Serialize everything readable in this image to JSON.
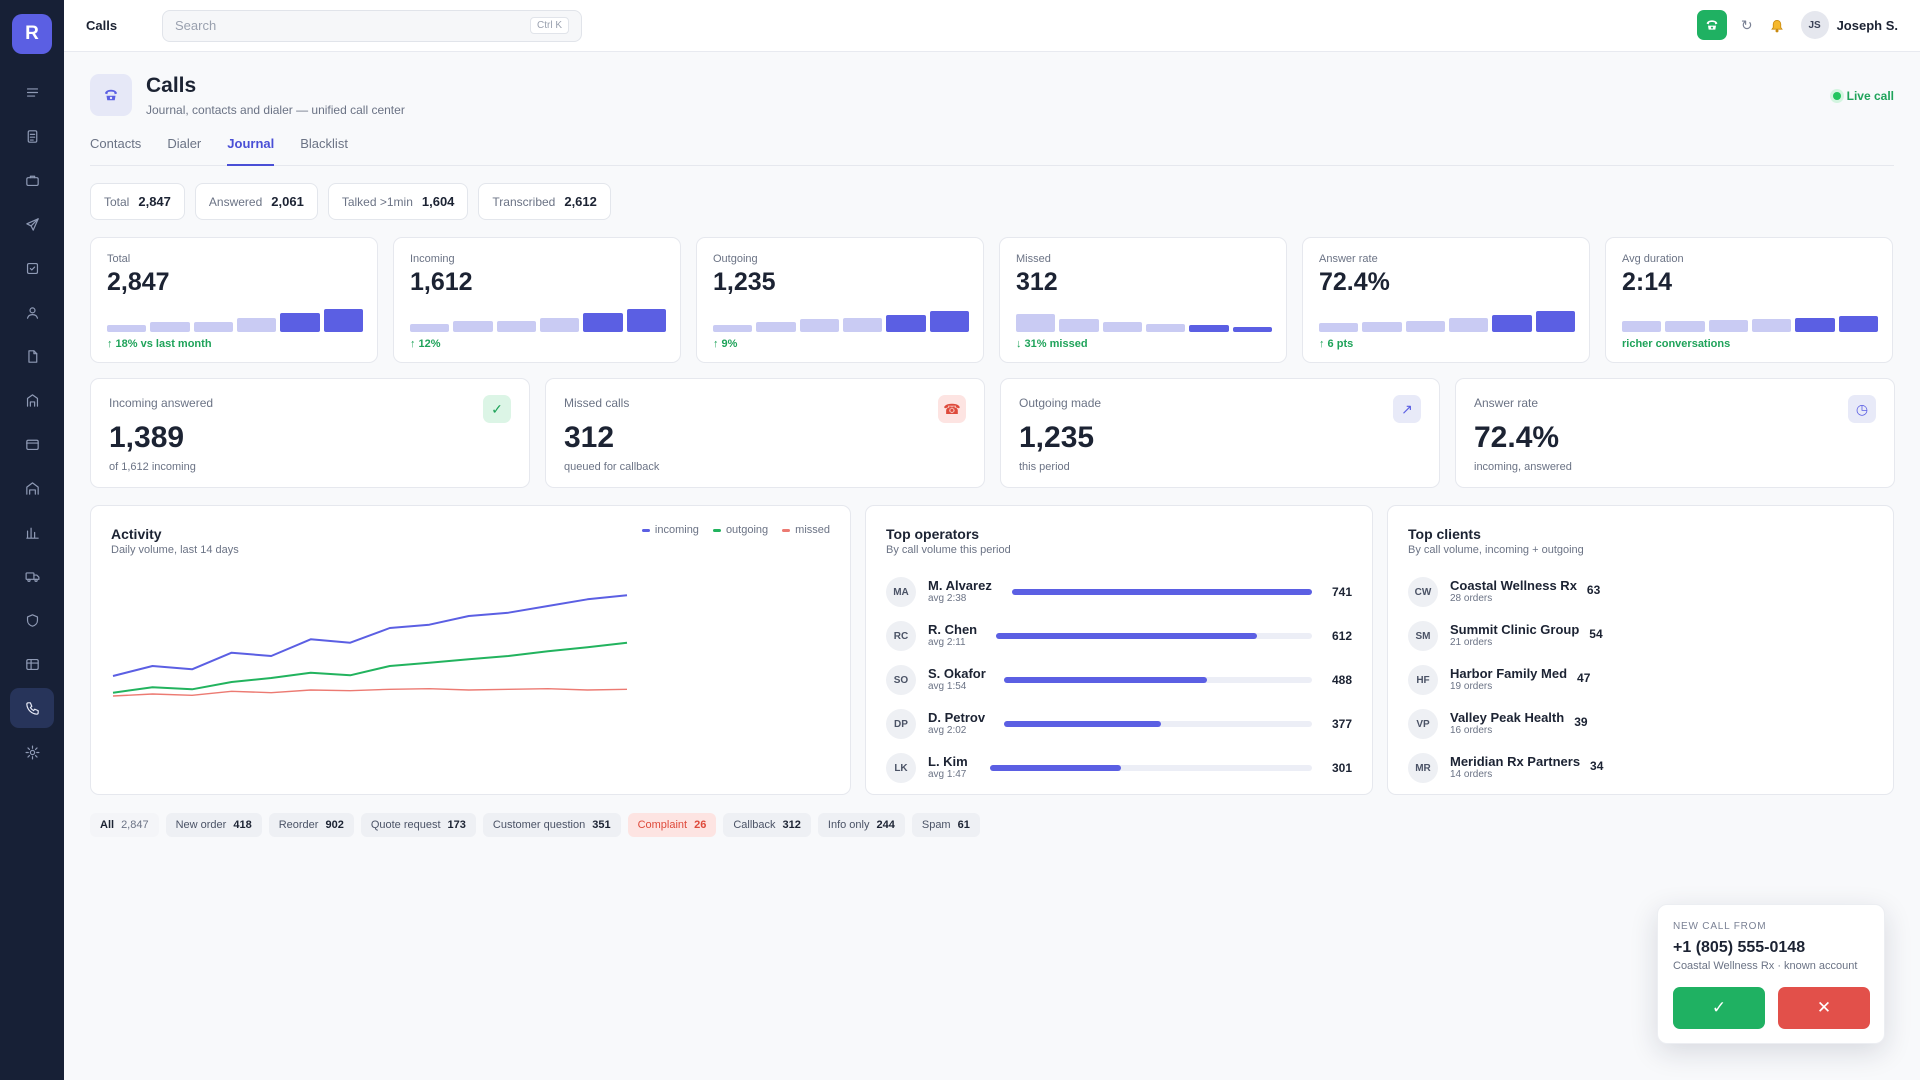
{
  "app": {
    "logo_letter": "R"
  },
  "sidebar": {
    "items": [
      {
        "icon": "menu-icon"
      },
      {
        "icon": "document-icon"
      },
      {
        "icon": "briefcase-icon"
      },
      {
        "icon": "send-icon"
      },
      {
        "icon": "checkbox-icon"
      },
      {
        "icon": "user-icon"
      },
      {
        "icon": "file-icon"
      },
      {
        "icon": "store-icon"
      },
      {
        "icon": "calendar-icon"
      },
      {
        "icon": "warehouse-icon"
      },
      {
        "icon": "bar-chart-icon"
      },
      {
        "icon": "truck-icon"
      },
      {
        "icon": "shield-icon"
      },
      {
        "icon": "table-icon"
      },
      {
        "icon": "phone-icon",
        "active": true
      },
      {
        "icon": "gear-icon"
      }
    ]
  },
  "topbar": {
    "title": "Calls",
    "search_placeholder": "Search",
    "search_shortcut": "Ctrl K",
    "refresh_glyph": "↻",
    "user_initials": "JS",
    "user_name": "Joseph S."
  },
  "header": {
    "title": "Calls",
    "subtitle": "Journal, contacts and dialer — unified call center",
    "live_label": "Live call"
  },
  "tabs": [
    "Contacts",
    "Dialer",
    "Journal",
    "Blacklist"
  ],
  "active_tab": "Journal",
  "summary_chips": [
    {
      "label": "Total",
      "value": "2,847"
    },
    {
      "label": "Answered",
      "value": "2,061"
    },
    {
      "label": "Talked >1min",
      "value": "1,604"
    },
    {
      "label": "Transcribed",
      "value": "2,612"
    }
  ],
  "kpis": [
    {
      "label": "Total",
      "value": "2,847",
      "delta": "↑ 18% vs last month",
      "bars": [
        0.3,
        0.42,
        0.42,
        0.58,
        0.78,
        0.95
      ]
    },
    {
      "label": "Incoming",
      "value": "1,612",
      "delta": "↑ 12%",
      "bars": [
        0.32,
        0.45,
        0.45,
        0.6,
        0.8,
        0.95
      ]
    },
    {
      "label": "Outgoing",
      "value": "1,235",
      "delta": "↑ 9%",
      "bars": [
        0.3,
        0.42,
        0.55,
        0.6,
        0.72,
        0.88
      ]
    },
    {
      "label": "Missed",
      "value": "312",
      "delta": "↓ 31% missed",
      "bars": [
        0.75,
        0.55,
        0.42,
        0.35,
        0.28,
        0.22
      ]
    },
    {
      "label": "Answer rate",
      "value": "72.4%",
      "delta": "↑ 6 pts",
      "bars": [
        0.38,
        0.42,
        0.45,
        0.6,
        0.72,
        0.88
      ]
    },
    {
      "label": "Avg duration",
      "value": "2:14",
      "delta": "richer conversations",
      "bars": [
        0.45,
        0.45,
        0.48,
        0.55,
        0.58,
        0.68
      ]
    }
  ],
  "stats": [
    {
      "label": "Incoming answered",
      "value": "1,389",
      "sub": "of 1,612 incoming",
      "icon": "check-icon",
      "glyph": "✓",
      "fg": "#1fa35a",
      "bg": "#dcf5e6"
    },
    {
      "label": "Missed calls",
      "value": "312",
      "sub": "queued for callback",
      "icon": "phone-missed-icon",
      "glyph": "☎",
      "fg": "#de4a3b",
      "bg": "#fde4e2"
    },
    {
      "label": "Outgoing made",
      "value": "1,235",
      "sub": "this period",
      "icon": "arrow-up-right-icon",
      "glyph": "↗",
      "fg": "#5b5fe3",
      "bg": "#e8eaf8"
    },
    {
      "label": "Answer rate",
      "value": "72.4%",
      "sub": "incoming, answered",
      "icon": "clock-icon",
      "glyph": "◷",
      "fg": "#5b5fe3",
      "bg": "#e8eaf8"
    }
  ],
  "activity": {
    "title": "Activity",
    "subtitle": "Daily volume, last 14 days",
    "colors": {
      "incoming": "#5b5fe3",
      "outgoing": "#22b35e",
      "missed": "#ec7a72"
    }
  },
  "chart_data": {
    "type": "line",
    "x": [
      1,
      2,
      3,
      4,
      5,
      6,
      7,
      8,
      9,
      10,
      11,
      12,
      13,
      14
    ],
    "series": [
      {
        "name": "incoming",
        "values": [
          135,
          150,
          145,
          170,
          165,
          190,
          185,
          207,
          212,
          225,
          230,
          240,
          250,
          256
        ]
      },
      {
        "name": "outgoing",
        "values": [
          110,
          118,
          115,
          126,
          132,
          140,
          136,
          150,
          155,
          160,
          165,
          172,
          178,
          185
        ]
      },
      {
        "name": "missed",
        "values": [
          105,
          108,
          106,
          112,
          110,
          114,
          113,
          115,
          116,
          114,
          115,
          116,
          114,
          115
        ]
      }
    ],
    "ylim": [
      0,
      300
    ]
  },
  "operators": {
    "title": "Top operators",
    "subtitle": "By call volume this period",
    "items": [
      {
        "initials": "MA",
        "name": "M. Alvarez",
        "avg": "avg 2:38",
        "value": 741
      },
      {
        "initials": "RC",
        "name": "R. Chen",
        "avg": "avg 2:11",
        "value": 612
      },
      {
        "initials": "SO",
        "name": "S. Okafor",
        "avg": "avg 1:54",
        "value": 488
      },
      {
        "initials": "DP",
        "name": "D. Petrov",
        "avg": "avg 2:02",
        "value": 377
      },
      {
        "initials": "LK",
        "name": "L. Kim",
        "avg": "avg 1:47",
        "value": 301
      }
    ]
  },
  "clients": {
    "title": "Top clients",
    "subtitle": "By call volume, incoming + outgoing",
    "items": [
      {
        "initials": "CW",
        "name": "Coastal Wellness Rx",
        "orders": "28 orders",
        "value": "63"
      },
      {
        "initials": "SM",
        "name": "Summit Clinic Group",
        "orders": "21 orders",
        "value": "54"
      },
      {
        "initials": "HF",
        "name": "Harbor Family Med",
        "orders": "19 orders",
        "value": "47"
      },
      {
        "initials": "VP",
        "name": "Valley Peak Health",
        "orders": "16 orders",
        "value": "39"
      },
      {
        "initials": "MR",
        "name": "Meridian Rx Partners",
        "orders": "14 orders",
        "value": "34"
      }
    ]
  },
  "filters": [
    {
      "label": "All",
      "count": "2,847",
      "selected": true
    },
    {
      "label": "New order",
      "count": "418"
    },
    {
      "label": "Reorder",
      "count": "902"
    },
    {
      "label": "Quote request",
      "count": "173"
    },
    {
      "label": "Customer question",
      "count": "351"
    },
    {
      "label": "Complaint",
      "count": "26",
      "variant": "complaint"
    },
    {
      "label": "Callback",
      "count": "312"
    },
    {
      "label": "Info only",
      "count": "244"
    },
    {
      "label": "Spam",
      "count": "61"
    }
  ],
  "incoming_call": {
    "eyebrow": "NEW CALL FROM",
    "number": "+1 (805) 555-0148",
    "caller": "Coastal Wellness Rx · known account",
    "accept_glyph": "✓",
    "decline_glyph": "✕"
  }
}
